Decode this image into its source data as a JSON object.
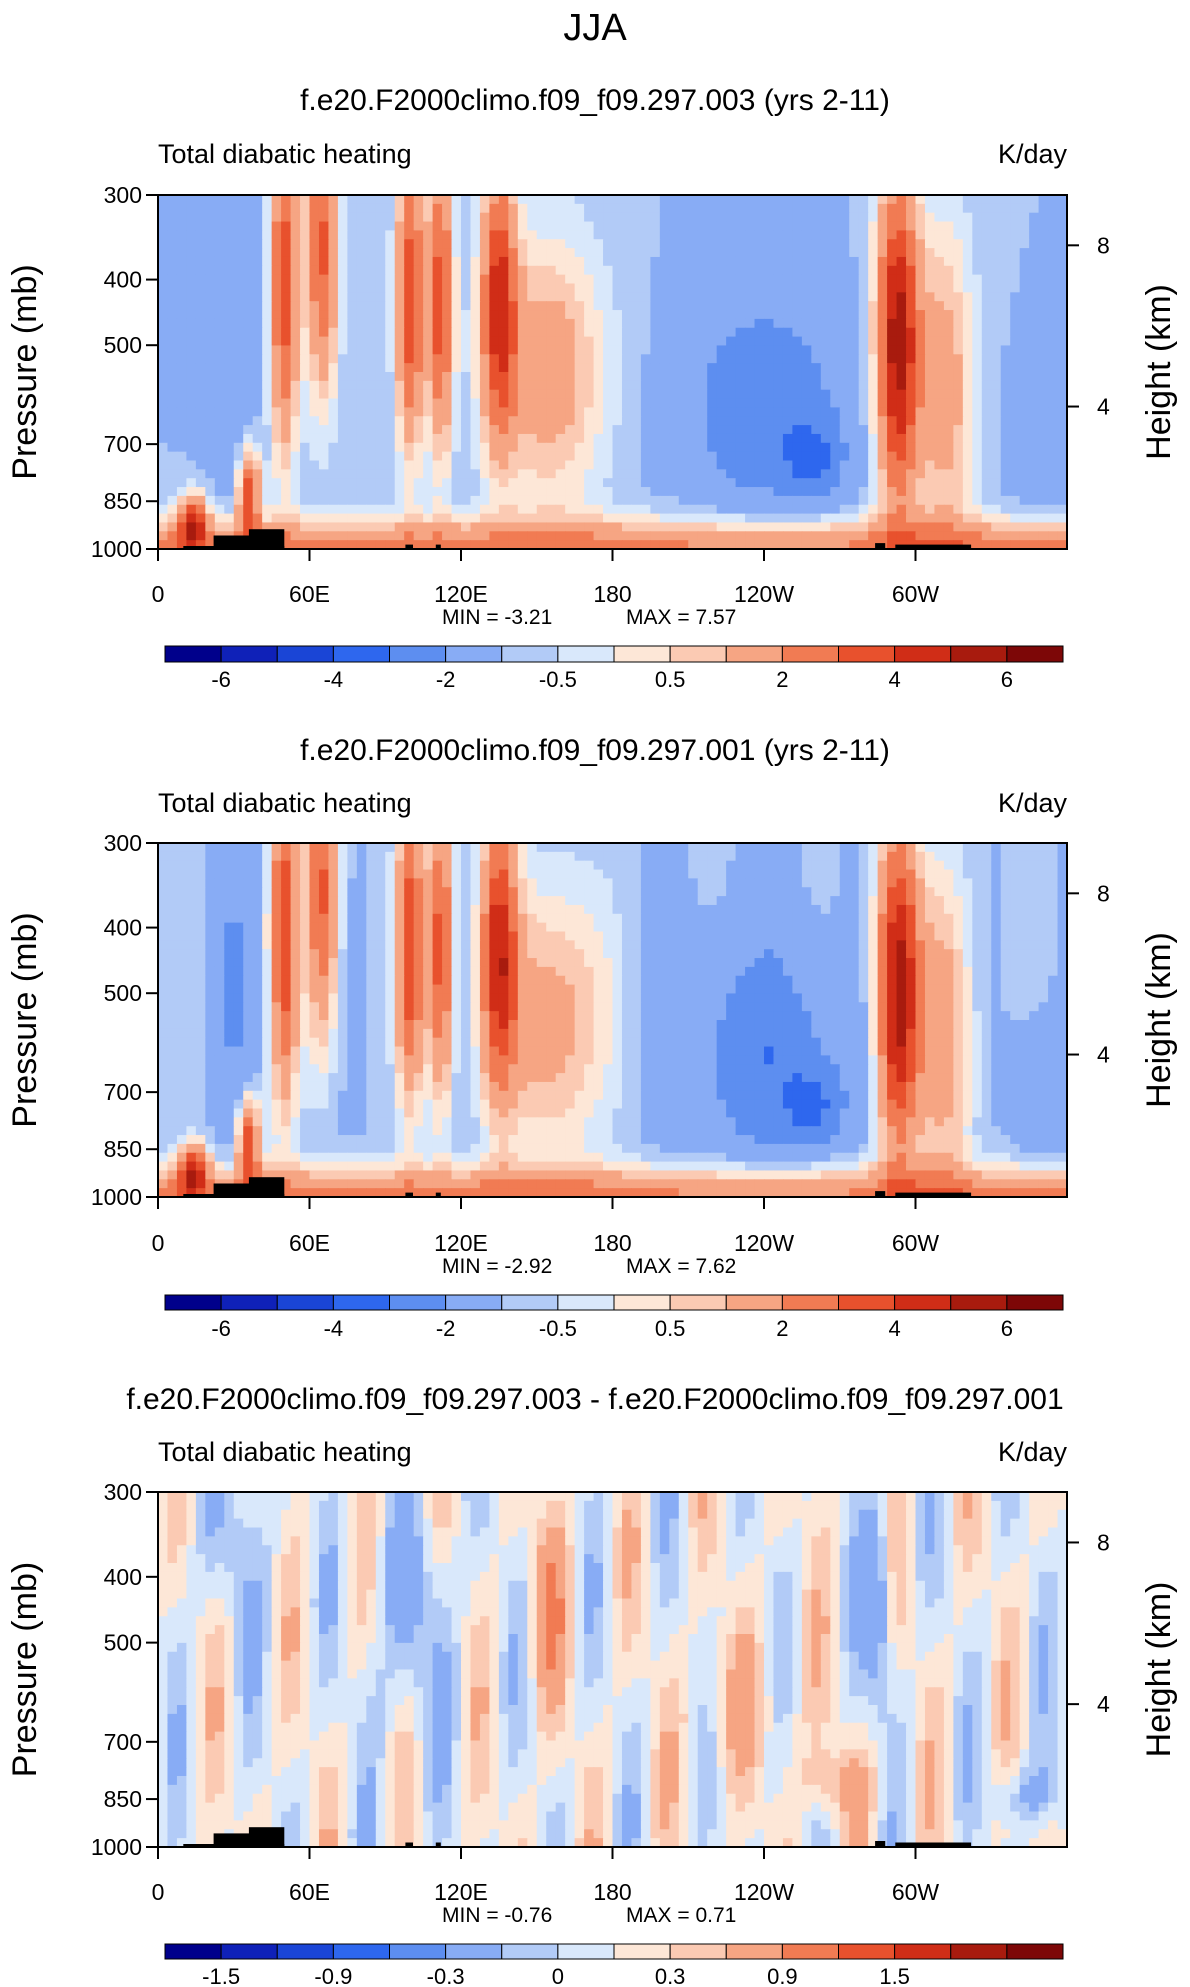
{
  "figure_title": "JJA",
  "panels": [
    {
      "title": "f.e20.F2000climo.f09_f09.297.003 (yrs 2-11)",
      "left_label": "Total diabatic heating",
      "right_label": "K/day",
      "min_text": "MIN =   -3.21",
      "max_text": "MAX =    7.57",
      "colorbar_ticks": [
        "-6",
        "-4",
        "-2",
        "-0.5",
        "0.5",
        "2",
        "4",
        "6"
      ]
    },
    {
      "title": "f.e20.F2000climo.f09_f09.297.001 (yrs 2-11)",
      "left_label": "Total diabatic heating",
      "right_label": "K/day",
      "min_text": "MIN =   -2.92",
      "max_text": "MAX =    7.62",
      "colorbar_ticks": [
        "-6",
        "-4",
        "-2",
        "-0.5",
        "0.5",
        "2",
        "4",
        "6"
      ]
    },
    {
      "title": "f.e20.F2000climo.f09_f09.297.003 - f.e20.F2000climo.f09_f09.297.001",
      "left_label": "Total diabatic heating",
      "right_label": "K/day",
      "min_text": "MIN =   -0.76",
      "max_text": "MAX =    0.71",
      "colorbar_ticks": [
        "-1.5",
        "-0.9",
        "-0.3",
        "0",
        "0.3",
        "0.9",
        "1.5"
      ]
    }
  ],
  "chart_data": {
    "type": "heatmap",
    "x_ticks": [
      "0",
      "60E",
      "120E",
      "180",
      "120W",
      "60W"
    ],
    "x_tick_values": [
      0,
      60,
      120,
      180,
      240,
      300
    ],
    "xlim": [
      0,
      360
    ],
    "y_ticks": [
      "300",
      "400",
      "500",
      "700",
      "850",
      "1000"
    ],
    "y_tick_values": [
      300,
      400,
      500,
      700,
      850,
      1000
    ],
    "ylim": [
      1000,
      300
    ],
    "y_scale": "log",
    "ylabel": "Pressure (mb)",
    "ylabel_right": "Height (km)",
    "y2_ticks": [
      "8",
      "4"
    ],
    "y2_tick_values": [
      8,
      4
    ],
    "units": "K/day",
    "colormap": [
      "#00008b",
      "#0f21b8",
      "#1a45d6",
      "#2e67ee",
      "#5d8ef0",
      "#88acf5",
      "#b2cbf7",
      "#d9e8fb",
      "#fde7d7",
      "#fbcab3",
      "#f6a583",
      "#f17b53",
      "#e8512d",
      "#d02d17",
      "#a81b0e",
      "#7d0707"
    ],
    "topography_color": "#000000",
    "contour_values": [
      [
        -7,
        -6,
        -5,
        -4,
        -3,
        -2,
        -1,
        -0.5,
        0,
        0.5,
        1,
        2,
        3,
        4,
        5,
        6,
        7
      ],
      [
        -7,
        -6,
        -5,
        -4,
        -3,
        -2,
        -1,
        -0.5,
        0,
        0.5,
        1,
        2,
        3,
        4,
        5,
        6,
        7
      ],
      [
        -1.8,
        -1.5,
        -1.2,
        -0.9,
        -0.6,
        -0.3,
        -0.15,
        0,
        0.15,
        0.3,
        0.6,
        0.9,
        1.2,
        1.5,
        1.8
      ]
    ],
    "panel_min": [
      -3.21,
      -2.92,
      -0.76
    ],
    "panel_max": [
      7.57,
      7.62,
      0.71
    ]
  }
}
